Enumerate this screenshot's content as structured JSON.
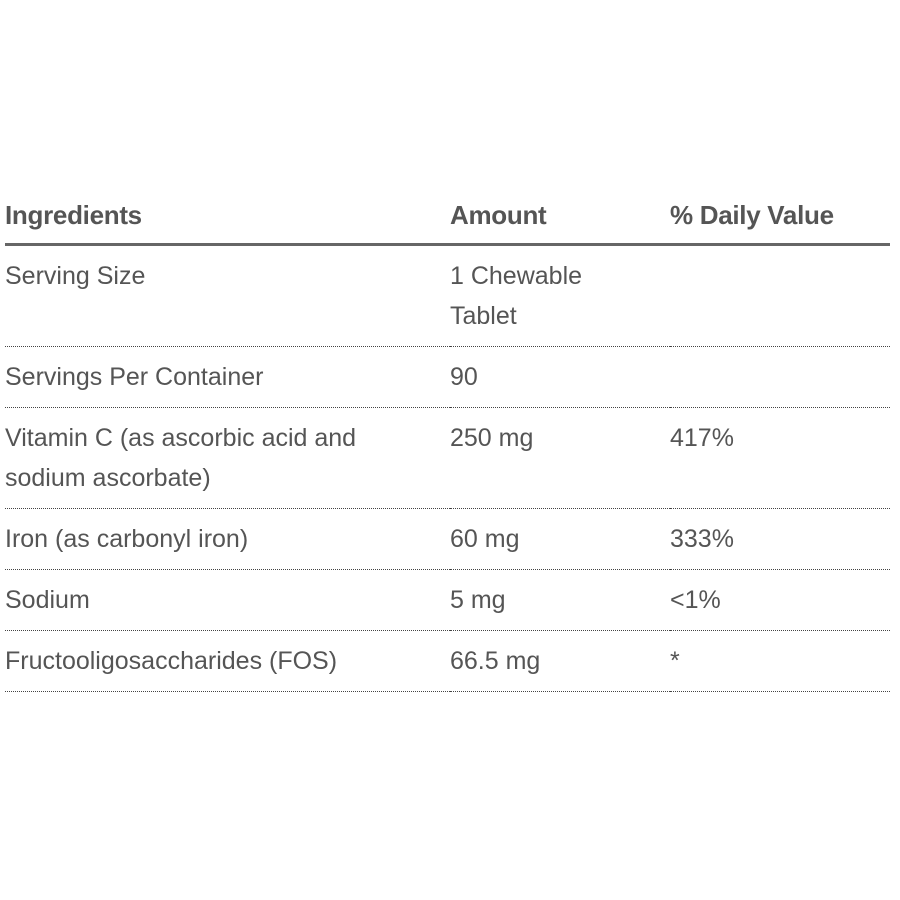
{
  "table": {
    "headers": {
      "ingredients": "Ingredients",
      "amount": "Amount",
      "daily_value": "% Daily Value"
    },
    "rows": [
      {
        "ingredient": "Serving Size",
        "amount": "1 Chewable Tablet",
        "daily_value": ""
      },
      {
        "ingredient": "Servings Per Container",
        "amount": "90",
        "daily_value": ""
      },
      {
        "ingredient": "Vitamin C (as ascorbic acid and sodium ascorbate)",
        "amount": "250 mg",
        "daily_value": "417%"
      },
      {
        "ingredient": "Iron (as carbonyl iron)",
        "amount": "60 mg",
        "daily_value": "333%"
      },
      {
        "ingredient": "Sodium",
        "amount": "5 mg",
        "daily_value": "<1%"
      },
      {
        "ingredient": "Fructooligosaccharides (FOS)",
        "amount": "66.5 mg",
        "daily_value": "*"
      }
    ]
  }
}
